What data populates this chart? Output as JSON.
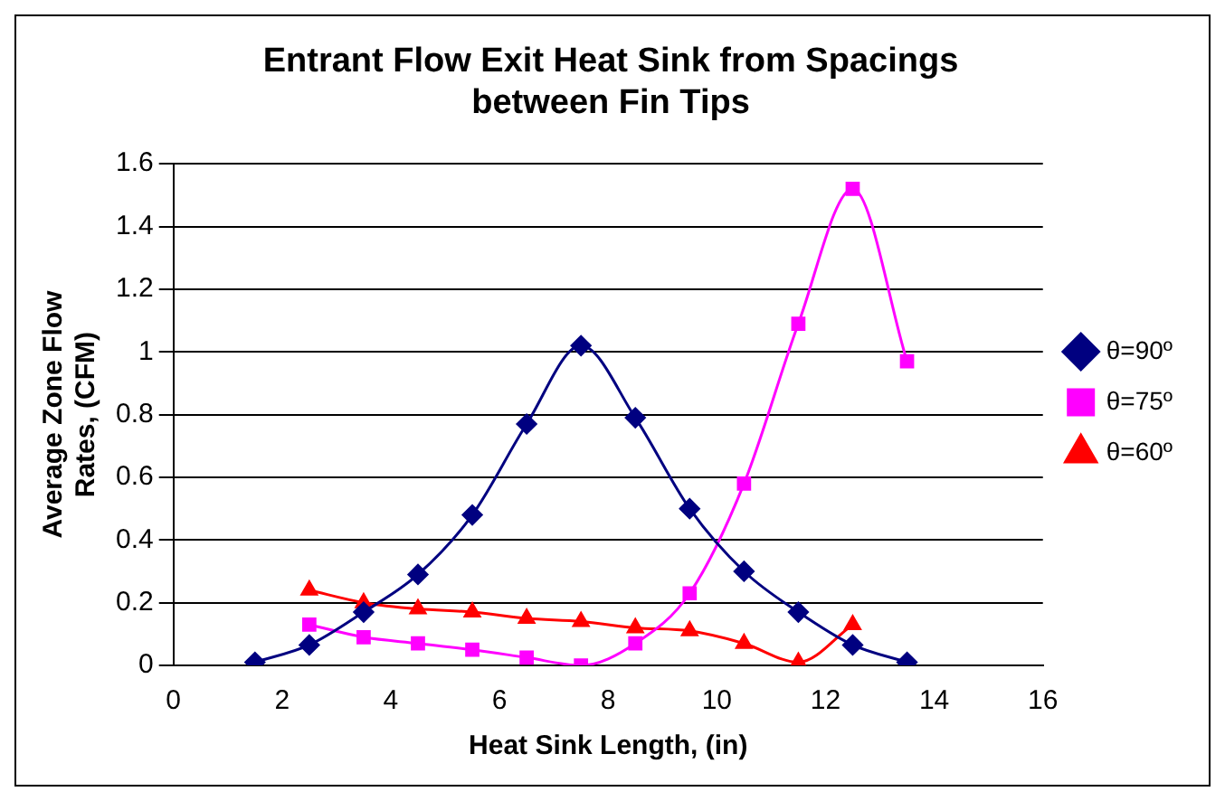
{
  "chart_data": {
    "type": "line",
    "title": "Entrant Flow Exit Heat Sink from Spacings between Fin Tips",
    "xlabel": "Heat Sink Length, (in)",
    "ylabel": "Average Zone Flow Rates, (CFM)",
    "xlim": [
      0,
      16
    ],
    "xticks": [
      0,
      2,
      4,
      6,
      8,
      10,
      12,
      14,
      16
    ],
    "ylim": [
      0,
      1.6
    ],
    "yticks": [
      0,
      0.2,
      0.4,
      0.6,
      0.8,
      1,
      1.2,
      1.4,
      1.6
    ],
    "grid": "y",
    "legend": "right",
    "series": [
      {
        "name": "θ=90º",
        "color": "#000080",
        "marker": "diamond",
        "x": [
          1.5,
          2.5,
          3.5,
          4.5,
          5.5,
          6.5,
          7.5,
          8.5,
          9.5,
          10.5,
          11.5,
          12.5,
          13.5
        ],
        "values": [
          0.01,
          0.065,
          0.17,
          0.29,
          0.48,
          0.77,
          1.02,
          0.79,
          0.5,
          0.3,
          0.17,
          0.065,
          0.01
        ]
      },
      {
        "name": "θ=75º",
        "color": "#ff00ff",
        "marker": "square",
        "x": [
          2.5,
          3.5,
          4.5,
          5.5,
          6.5,
          7.5,
          8.5,
          9.5,
          10.5,
          11.5,
          12.5,
          13.5
        ],
        "values": [
          0.13,
          0.09,
          0.07,
          0.05,
          0.025,
          0,
          0.07,
          0.23,
          0.58,
          1.09,
          1.52,
          0.97
        ]
      },
      {
        "name": "θ=60º",
        "color": "#ff0000",
        "marker": "triangle",
        "x": [
          2.5,
          3.5,
          4.5,
          5.5,
          6.5,
          7.5,
          8.5,
          9.5,
          10.5,
          11.5,
          12.5
        ],
        "values": [
          0.24,
          0.2,
          0.18,
          0.17,
          0.15,
          0.14,
          0.12,
          0.11,
          0.07,
          0.01,
          0.13
        ]
      }
    ]
  }
}
